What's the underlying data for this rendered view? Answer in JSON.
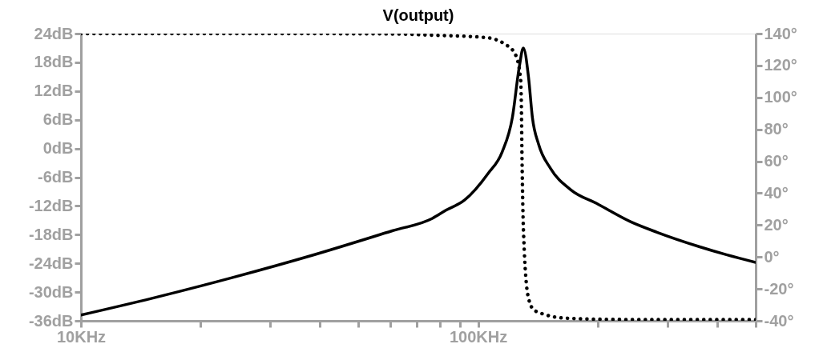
{
  "chart_data": {
    "type": "line",
    "title": "V(output)",
    "log": "x",
    "grid": false,
    "xlim": [
      10,
      500
    ],
    "xticks": [
      {
        "value": 10,
        "label": "10KHz"
      },
      {
        "value": 20,
        "label": null
      },
      {
        "value": 30,
        "label": null
      },
      {
        "value": 40,
        "label": null
      },
      {
        "value": 50,
        "label": null
      },
      {
        "value": 60,
        "label": null
      },
      {
        "value": 70,
        "label": null
      },
      {
        "value": 80,
        "label": null
      },
      {
        "value": 90,
        "label": null
      },
      {
        "value": 100,
        "label": "100KHz"
      },
      {
        "value": 200,
        "label": null
      },
      {
        "value": 300,
        "label": null
      },
      {
        "value": 400,
        "label": null
      },
      {
        "value": 500,
        "label": null
      }
    ],
    "ylim": [
      -36,
      24
    ],
    "yticks": [
      {
        "value": -36,
        "label": "-36dB"
      },
      {
        "value": -30,
        "label": "-30dB"
      },
      {
        "value": -24,
        "label": "-24dB"
      },
      {
        "value": -18,
        "label": "-18dB"
      },
      {
        "value": -12,
        "label": "-12dB"
      },
      {
        "value": -6,
        "label": "-6dB"
      },
      {
        "value": 0,
        "label": "0dB"
      },
      {
        "value": 6,
        "label": "6dB"
      },
      {
        "value": 12,
        "label": "12dB"
      },
      {
        "value": 18,
        "label": "18dB"
      },
      {
        "value": 24,
        "label": "24dB"
      }
    ],
    "y2lim": [
      -40,
      140
    ],
    "y2ticks": [
      {
        "value": -40,
        "label": "-40°"
      },
      {
        "value": -20,
        "label": "-20°"
      },
      {
        "value": 0,
        "label": "0°"
      },
      {
        "value": 20,
        "label": "20°"
      },
      {
        "value": 40,
        "label": "40°"
      },
      {
        "value": 60,
        "label": "60°"
      },
      {
        "value": 80,
        "label": "80°"
      },
      {
        "value": 100,
        "label": "100°"
      },
      {
        "value": 120,
        "label": "120°"
      },
      {
        "value": 140,
        "label": "140°"
      }
    ],
    "series": [
      {
        "color": "#000000",
        "line_style": "solid",
        "x": [
          10,
          15.1,
          24,
          38.3,
          60.8,
          76.7,
          83,
          92.4,
          106,
          115,
          122,
          127,
          130,
          134,
          137,
          142,
          152,
          171,
          200,
          242,
          282,
          360,
          422,
          500
        ],
        "values": [
          -34.8,
          -31.3,
          -27,
          -22.3,
          -17.2,
          -14.6,
          -12.9,
          -10.8,
          -5.2,
          -0.7,
          6.5,
          17.1,
          21,
          14.8,
          6.5,
          0.9,
          -4.1,
          -8.6,
          -11.6,
          -15.3,
          -17.5,
          -20.5,
          -22.2,
          -23.8
        ]
      },
      {
        "axis": "y2",
        "color": "#000000",
        "line_style": "dotted",
        "x": [
          10,
          30,
          60,
          76.7,
          104.7,
          116.6,
          123.8,
          127.9,
          128.5,
          129,
          129.6,
          130.7,
          132,
          134,
          138,
          147,
          167,
          210,
          300,
          500
        ],
        "values": [
          140,
          140,
          139.8,
          139,
          137.5,
          133.5,
          127.5,
          112,
          96,
          62,
          32,
          4,
          -14,
          -26,
          -33,
          -36,
          -38.4,
          -39.1,
          -39.3,
          -39.3
        ]
      }
    ]
  }
}
